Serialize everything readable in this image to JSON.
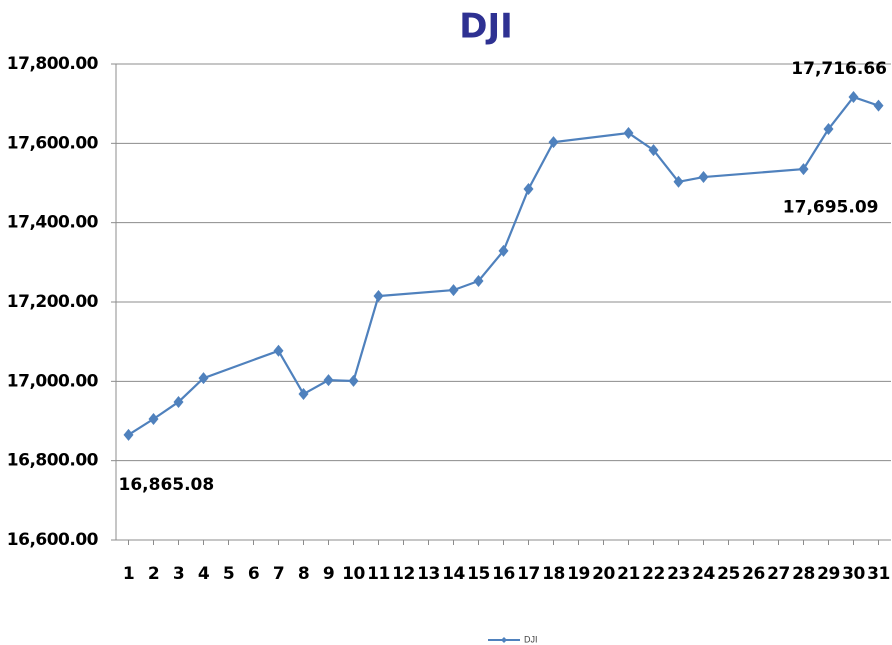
{
  "chart_data": {
    "type": "line",
    "title": "DJI",
    "x": [
      1,
      2,
      3,
      4,
      7,
      8,
      9,
      10,
      11,
      14,
      15,
      16,
      17,
      18,
      21,
      22,
      23,
      24,
      28,
      29,
      30,
      31
    ],
    "series": [
      {
        "name": "DJI",
        "color": "#4f81bd",
        "values": [
          16865.08,
          16905,
          16948,
          17008,
          17077,
          16968,
          17003,
          17001,
          17215,
          17230,
          17253,
          17329,
          17485,
          17603,
          17626,
          17583,
          17503,
          17515,
          17535,
          17636,
          17716.66,
          17695.09
        ],
        "value_labels": [
          "16,865.08",
          null,
          null,
          null,
          null,
          null,
          null,
          null,
          null,
          null,
          null,
          null,
          null,
          null,
          null,
          null,
          null,
          null,
          null,
          null,
          "17,716.66",
          "17,695.09"
        ]
      }
    ],
    "xlim": [
      0.5,
      31.5
    ],
    "xticks": [
      1,
      2,
      3,
      4,
      5,
      6,
      7,
      8,
      9,
      10,
      11,
      12,
      13,
      14,
      15,
      16,
      17,
      18,
      19,
      20,
      21,
      22,
      23,
      24,
      25,
      26,
      27,
      28,
      29,
      30,
      31
    ],
    "ylim": [
      16600,
      17800
    ],
    "yticks": [
      {
        "value": 16600,
        "label": "16,600.00"
      },
      {
        "value": 16800,
        "label": "16,800.00"
      },
      {
        "value": 17000,
        "label": "17,000.00"
      },
      {
        "value": 17200,
        "label": "17,200.00"
      },
      {
        "value": 17400,
        "label": "17,400.00"
      },
      {
        "value": 17600,
        "label": "17,600.00"
      },
      {
        "value": 17800,
        "label": "17,800.00"
      }
    ],
    "grid": true,
    "legend": "bottom"
  }
}
